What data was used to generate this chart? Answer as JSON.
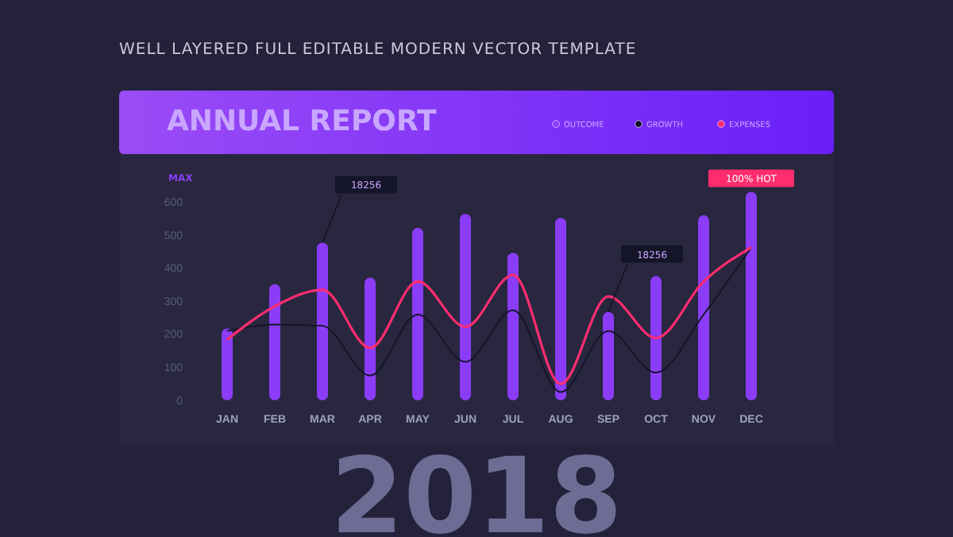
{
  "chart_data": {
    "type": "bar",
    "title": "ANNUAL REPORT",
    "subtitle": "WELL LAYERED FULL EDITABLE MODERN VECTOR TEMPLATE",
    "ylabel": "MAX",
    "categories": [
      "JAN",
      "FEB",
      "MAR",
      "APR",
      "MAY",
      "JUN",
      "JUL",
      "AUG",
      "SEP",
      "OCT",
      "NOV",
      "DEC"
    ],
    "series": [
      {
        "name": "OUTCOME",
        "color": "#8b3cf7",
        "values": [
          218,
          352,
          478,
          372,
          523,
          565,
          447,
          553,
          268,
          377,
          561,
          632
        ]
      },
      {
        "name": "GROWTH",
        "type": "line",
        "color": "#15152a",
        "values": [
          210,
          230,
          226,
          75,
          260,
          117,
          273,
          25,
          210,
          84,
          260,
          464
        ]
      },
      {
        "name": "EXPENSES",
        "type": "line",
        "color": "#ff2d6f",
        "values": [
          184,
          285,
          335,
          159,
          360,
          223,
          380,
          50,
          315,
          189,
          360,
          464
        ]
      }
    ],
    "ylim": [
      0,
      650
    ],
    "yticks": [
      0,
      100,
      200,
      300,
      400,
      500,
      600
    ],
    "grid": false,
    "legend": "top right",
    "marker": "none",
    "line_style": "solid",
    "annotations": [
      {
        "text": "18256",
        "x": "MAR",
        "y": 478
      },
      {
        "text": "18256",
        "x": "SEP",
        "y": 268
      },
      {
        "text": "100% HOT",
        "x": "DEC",
        "y": 632
      },
      "2018"
    ]
  }
}
